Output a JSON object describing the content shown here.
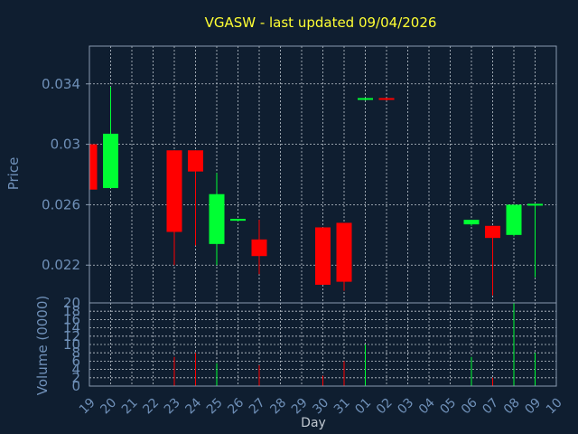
{
  "colors": {
    "background": "#0f1e30",
    "title": "#ffff33",
    "axis_text": "#6f90b8",
    "frame": "#8a9bb0",
    "grid": "#c0c8d0",
    "up": "#00ff33",
    "down": "#ff0000"
  },
  "chart_data": {
    "type": "candlestick",
    "title": "VGASW - last updated 09/04/2026",
    "xlabel": "Day",
    "ylabel": "Price",
    "volume_label": "Volume (0000)",
    "grid": true,
    "x_ticks": [
      "19",
      "20",
      "21",
      "22",
      "23",
      "24",
      "25",
      "26",
      "27",
      "28",
      "29",
      "30",
      "31",
      "01",
      "02",
      "03",
      "04",
      "05",
      "06",
      "07",
      "08",
      "09",
      "10"
    ],
    "price_ticks": [
      0.022,
      0.026,
      0.03,
      0.034
    ],
    "price_tick_labels": [
      "0.022",
      "0.026",
      "0.03",
      "0.034"
    ],
    "price_ylim": [
      0.0195,
      0.0365
    ],
    "volume_ticks": [
      0,
      2,
      4,
      6,
      8,
      10,
      12,
      14,
      16,
      18,
      20
    ],
    "volume_tick_labels": [
      "0",
      "2",
      "4",
      "6",
      "8",
      "10",
      "12",
      "14",
      "16",
      "18",
      "20"
    ],
    "volume_ylim": [
      0,
      20
    ],
    "candles": [
      {
        "day": "19",
        "open": 0.03,
        "high": 0.03,
        "low": 0.027,
        "close": 0.027,
        "volume": 0
      },
      {
        "day": "20",
        "open": 0.0271,
        "high": 0.0338,
        "low": 0.0271,
        "close": 0.0307,
        "volume": 0
      },
      {
        "day": "23",
        "open": 0.0296,
        "high": 0.0296,
        "low": 0.022,
        "close": 0.0242,
        "volume": 7
      },
      {
        "day": "24",
        "open": 0.0296,
        "high": 0.0296,
        "low": 0.0233,
        "close": 0.0282,
        "volume": 8
      },
      {
        "day": "25",
        "open": 0.0234,
        "high": 0.0281,
        "low": 0.022,
        "close": 0.0267,
        "volume": 5.5
      },
      {
        "day": "26",
        "open": 0.0249,
        "high": 0.025,
        "low": 0.0249,
        "close": 0.025,
        "volume": 0
      },
      {
        "day": "27",
        "open": 0.0237,
        "high": 0.025,
        "low": 0.0214,
        "close": 0.0226,
        "volume": 5
      },
      {
        "day": "30",
        "open": 0.0245,
        "high": 0.0245,
        "low": 0.0207,
        "close": 0.0207,
        "volume": 2.5
      },
      {
        "day": "31",
        "open": 0.0248,
        "high": 0.0248,
        "low": 0.0203,
        "close": 0.0209,
        "volume": 6
      },
      {
        "day": "01",
        "open": 0.0329,
        "high": 0.033,
        "low": 0.0329,
        "close": 0.033,
        "volume": 10
      },
      {
        "day": "02",
        "open": 0.033,
        "high": 0.033,
        "low": 0.0329,
        "close": 0.0329,
        "volume": 0
      },
      {
        "day": "06",
        "open": 0.0247,
        "high": 0.025,
        "low": 0.0246,
        "close": 0.025,
        "volume": 7
      },
      {
        "day": "07",
        "open": 0.0246,
        "high": 0.0246,
        "low": 0.02,
        "close": 0.0238,
        "volume": 2
      },
      {
        "day": "08",
        "open": 0.024,
        "high": 0.026,
        "low": 0.0239,
        "close": 0.026,
        "volume": 20
      },
      {
        "day": "09",
        "open": 0.0259,
        "high": 0.026,
        "low": 0.0212,
        "close": 0.026,
        "volume": 8
      }
    ]
  }
}
